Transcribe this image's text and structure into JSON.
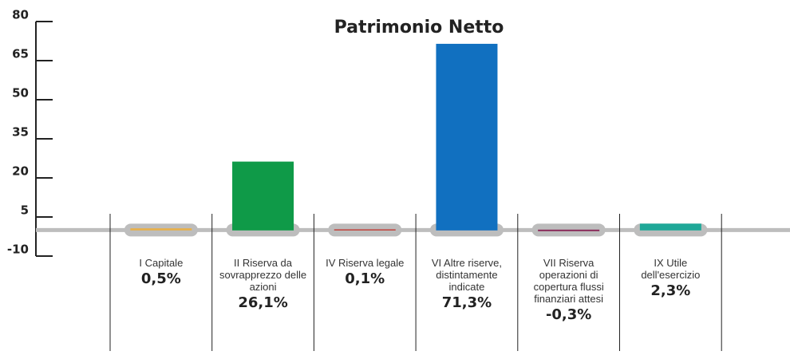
{
  "chart_data": {
    "type": "bar",
    "title": "Patrimonio Netto",
    "categories": [
      "I Capitale",
      "II Riserva da sovrapprezzo delle azioni",
      "IV Riserva legale",
      "VI Altre riserve, distintamente indicate",
      "VII Riserva operazioni di copertura flussi finanziari attesi",
      "IX Utile dell'esercizio"
    ],
    "values": [
      0.5,
      26.1,
      0.1,
      71.3,
      -0.3,
      2.3
    ],
    "value_labels": [
      "0,5%",
      "26,1%",
      "0,1%",
      "71,3%",
      "-0,3%",
      "2,3%"
    ],
    "colors": [
      "#e8b04a",
      "#0f9a48",
      "#c0302a",
      "#1170c0",
      "#8a2a5a",
      "#1fa898"
    ],
    "ylim": [
      -10,
      80
    ],
    "yticks": [
      -10,
      5,
      20,
      35,
      50,
      65,
      80
    ]
  }
}
